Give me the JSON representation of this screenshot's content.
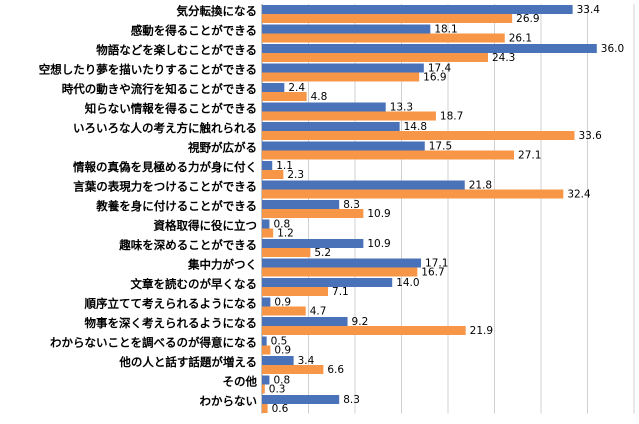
{
  "chart_data": {
    "type": "bar",
    "orientation": "horizontal",
    "categories": [
      "気分転換になる",
      "感動を得ることができる",
      "物語などを楽しむことができる",
      "空想したり夢を描いたりすることができる",
      "時代の動きや流行を知ることができる",
      "知らない情報を得ることができる",
      "いろいろな人の考え方に触れられる",
      "視野が広がる",
      "情報の真偽を見極める力が身に付く",
      "言葉の表現力をつけることができる",
      "教養を身に付けることができる",
      "資格取得に役に立つ",
      "趣味を深めることができる",
      "集中力がつく",
      "文章を読むのが早くなる",
      "順序立てて考えられるようになる",
      "物事を深く考えられるようになる",
      "わからないことを調べるのが得意になる",
      "他の人と話す話題が増える",
      "その他",
      "わからない"
    ],
    "series": [
      {
        "color": "#4a72b8",
        "values": [
          33.4,
          18.1,
          36.0,
          17.4,
          2.4,
          13.3,
          14.8,
          17.5,
          1.1,
          21.8,
          8.3,
          0.8,
          10.9,
          17.1,
          14.0,
          0.9,
          9.2,
          0.5,
          3.4,
          0.8,
          8.3
        ]
      },
      {
        "color": "#f79646",
        "values": [
          26.9,
          26.1,
          24.3,
          16.9,
          4.8,
          18.7,
          33.6,
          27.1,
          2.3,
          32.4,
          10.9,
          1.2,
          5.2,
          16.7,
          7.1,
          4.7,
          21.9,
          0.9,
          6.6,
          0.3,
          0.6
        ]
      }
    ],
    "xlim": [
      0,
      40
    ],
    "grid": true,
    "legend": "none"
  }
}
